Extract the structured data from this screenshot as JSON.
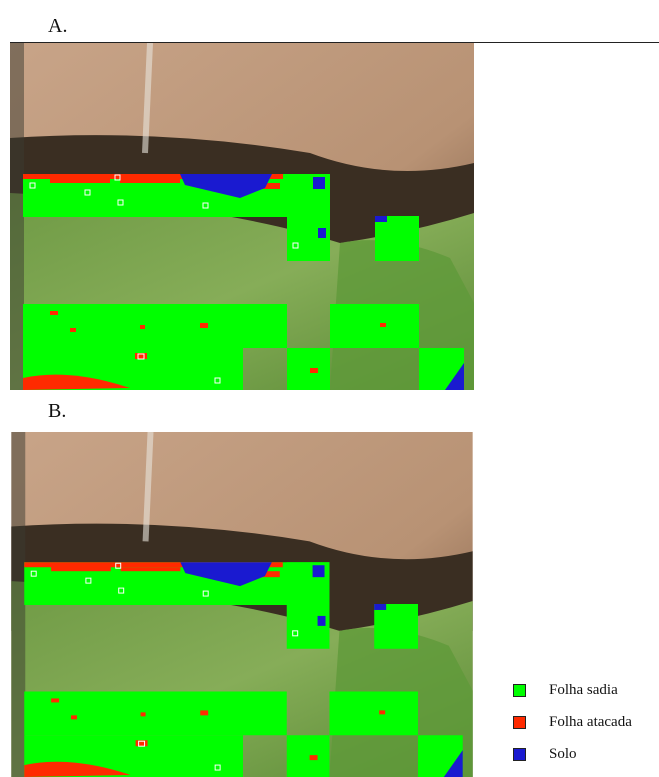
{
  "panels": [
    {
      "label": "A."
    },
    {
      "label": "B."
    }
  ],
  "legend": [
    {
      "label": "Folha sadia",
      "color": "#00ff00"
    },
    {
      "label": "Folha atacada",
      "color": "#ff2a00"
    },
    {
      "label": "Solo",
      "color": "#1a1ad0"
    }
  ]
}
